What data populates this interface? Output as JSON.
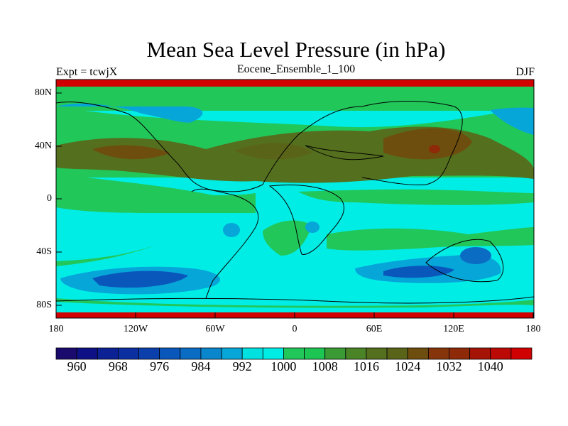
{
  "title": "Mean Sea Level Pressure (in hPa)",
  "subtitle_left": "Expt = tcwjX",
  "subtitle_center": "Eocene_Ensemble_1_100",
  "subtitle_right": "DJF",
  "lat_labels": [
    "80N",
    "40N",
    "0",
    "40S",
    "80S"
  ],
  "lon_labels": [
    "180",
    "120W",
    "60W",
    "0",
    "60E",
    "120E",
    "180"
  ],
  "colorbar": {
    "labels": [
      "960",
      "968",
      "976",
      "984",
      "992",
      "1000",
      "1008",
      "1016",
      "1024",
      "1032",
      "1040"
    ],
    "colors": [
      "#1b0a6e",
      "#0d1185",
      "#0b2194",
      "#0b2fa0",
      "#0b40ac",
      "#0a57bc",
      "#0b6cc4",
      "#0a86cc",
      "#06a6d8",
      "#00e1e0",
      "#00ede6",
      "#22c75a",
      "#1dc653",
      "#3a9a33",
      "#4b8327",
      "#546f1e",
      "#5a6419",
      "#6e4e0e",
      "#86350a",
      "#8e2a08",
      "#a51206",
      "#bb0a05",
      "#d00000"
    ]
  },
  "chart_data": {
    "type": "heatmap",
    "title": "Mean Sea Level Pressure (in hPa)",
    "variable": "Mean Sea Level Pressure",
    "units": "hPa",
    "experiment": "tcwjX",
    "dataset": "Eocene_Ensemble_1_100",
    "season": "DJF",
    "projection": "cylindrical equidistant",
    "xlim": [
      -180,
      180
    ],
    "ylim": [
      -90,
      90
    ],
    "x_ticks": [
      -180,
      -120,
      -60,
      0,
      60,
      120,
      180
    ],
    "y_ticks": [
      80,
      40,
      0,
      -40,
      -80
    ],
    "levels": [
      960,
      964,
      968,
      972,
      976,
      980,
      984,
      988,
      992,
      996,
      1000,
      1004,
      1008,
      1012,
      1016,
      1020,
      1024,
      1028,
      1032,
      1036,
      1040,
      1044
    ],
    "regions": [
      {
        "name": "polar high band",
        "value": 1040
      },
      {
        "name": "subtropical high belt 20N-40N",
        "value": 1018
      },
      {
        "name": "central pressure maximum near 100E 38N",
        "value": 1028
      },
      {
        "name": "southern subpolar low near 140W 58S",
        "value": 978
      },
      {
        "name": "southern subpolar low near 80E 55S",
        "value": 978
      },
      {
        "name": "equatorial trough",
        "value": 1000
      }
    ]
  }
}
